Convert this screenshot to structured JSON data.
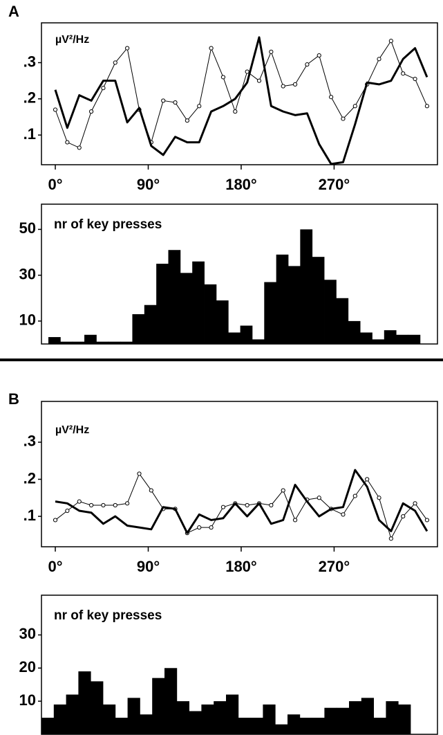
{
  "chart_data": [
    {
      "type": "line",
      "panel": "A",
      "y_label": "µV²/Hz",
      "x": [
        0,
        11.61,
        23.23,
        34.84,
        46.45,
        58.06,
        69.68,
        81.29,
        92.9,
        104.52,
        116.13,
        127.74,
        139.35,
        150.97,
        162.58,
        174.19,
        185.81,
        197.42,
        209.03,
        220.65,
        232.26,
        243.87,
        255.48,
        267.1,
        278.71,
        290.32,
        301.94,
        313.55,
        325.16,
        336.77,
        348.39,
        360
      ],
      "series": [
        {
          "color": "#000000",
          "values": [
            0.17,
            0.08,
            0.065,
            0.165,
            0.23,
            0.3,
            0.34,
            0.17,
            0.08,
            0.195,
            0.19,
            0.14,
            0.18,
            0.34,
            0.26,
            0.165,
            0.275,
            0.25,
            0.33,
            0.235,
            0.24,
            0.295,
            0.32,
            0.205,
            0.145,
            0.18,
            0.24,
            0.31,
            0.36,
            0.27,
            0.255,
            0.18
          ]
        },
        {
          "color": "#000000",
          "values": [
            0.225,
            0.12,
            0.21,
            0.195,
            0.25,
            0.25,
            0.135,
            0.175,
            0.07,
            0.045,
            0.095,
            0.08,
            0.08,
            0.165,
            0.18,
            0.2,
            0.245,
            0.37,
            0.18,
            0.165,
            0.155,
            0.16,
            0.075,
            0.02,
            0.025,
            0.13,
            0.245,
            0.24,
            0.25,
            0.31,
            0.34,
            0.26
          ]
        }
      ],
      "xlim": [
        -13.4,
        370.1
      ],
      "ylim": [
        0.018,
        0.41
      ],
      "xticks": [
        {
          "value": 0,
          "label": "0°"
        },
        {
          "value": 90,
          "label": "90°"
        },
        {
          "value": 180,
          "label": "180°"
        },
        {
          "value": 270,
          "label": "270°"
        }
      ],
      "yticks": [
        {
          "value": 0.1,
          "label": ".1"
        },
        {
          "value": 0.2,
          "label": ".2"
        },
        {
          "value": 0.3,
          "label": ".3"
        }
      ]
    },
    {
      "type": "bar",
      "y_label": "nr of key presses",
      "color": "#000000",
      "categories": [
        null,
        null,
        null,
        null,
        null,
        null,
        null,
        null,
        null,
        null,
        null,
        null,
        null,
        null,
        null,
        null,
        null,
        null,
        null,
        null,
        null,
        null,
        null,
        null,
        null,
        null,
        null,
        null,
        null,
        null,
        null
      ],
      "values": [
        3,
        1,
        1,
        4,
        1,
        1,
        1,
        13,
        17,
        35,
        41,
        31,
        36,
        26,
        19,
        5,
        8,
        2,
        27,
        39,
        34,
        50,
        38,
        28,
        20,
        10,
        5,
        2,
        6,
        4,
        4
      ],
      "ylim": [
        0,
        61
      ],
      "yticks": [
        10,
        30,
        50
      ]
    },
    {
      "type": "line",
      "panel": "B",
      "y_label": "µV²/Hz",
      "x": [
        0,
        11.61,
        23.23,
        34.84,
        46.45,
        58.06,
        69.68,
        81.29,
        92.9,
        104.52,
        116.13,
        127.74,
        139.35,
        150.97,
        162.58,
        174.19,
        185.81,
        197.42,
        209.03,
        220.65,
        232.26,
        243.87,
        255.48,
        267.1,
        278.71,
        290.32,
        301.94,
        313.55,
        325.16,
        336.77,
        348.39,
        360
      ],
      "series": [
        {
          "color": "#000000",
          "values": [
            0.09,
            0.115,
            0.14,
            0.13,
            0.13,
            0.13,
            0.135,
            0.215,
            0.17,
            0.12,
            0.12,
            0.055,
            0.07,
            0.07,
            0.125,
            0.135,
            0.13,
            0.135,
            0.13,
            0.17,
            0.09,
            0.145,
            0.15,
            0.12,
            0.105,
            0.155,
            0.2,
            0.15,
            0.04,
            0.1,
            0.135,
            0.09
          ]
        },
        {
          "color": "#000000",
          "values": [
            0.14,
            0.135,
            0.115,
            0.11,
            0.08,
            0.1,
            0.075,
            0.07,
            0.065,
            0.125,
            0.12,
            0.055,
            0.105,
            0.09,
            0.095,
            0.135,
            0.1,
            0.135,
            0.08,
            0.09,
            0.185,
            0.14,
            0.1,
            0.12,
            0.125,
            0.225,
            0.18,
            0.09,
            0.06,
            0.135,
            0.115,
            0.06
          ]
        }
      ],
      "xlim": [
        -13.4,
        370.1
      ],
      "ylim": [
        0.018,
        0.41
      ],
      "xticks": [
        {
          "value": 0,
          "label": "0°"
        },
        {
          "value": 90,
          "label": "90°"
        },
        {
          "value": 180,
          "label": "180°"
        },
        {
          "value": 270,
          "label": "270°"
        }
      ],
      "yticks": [
        {
          "value": 0.1,
          "label": ".1"
        },
        {
          "value": 0.2,
          "label": ".2"
        },
        {
          "value": 0.3,
          "label": ".3"
        }
      ]
    },
    {
      "type": "bar",
      "y_label": "nr of key presses",
      "color": "#000000",
      "categories": [
        null,
        null,
        null,
        null,
        null,
        null,
        null,
        null,
        null,
        null,
        null,
        null,
        null,
        null,
        null,
        null,
        null,
        null,
        null,
        null,
        null,
        null,
        null,
        null,
        null,
        null,
        null,
        null,
        null,
        null,
        null
      ],
      "values": [
        5,
        9,
        12,
        19,
        16,
        9,
        5,
        11,
        6,
        17,
        20,
        10,
        7,
        9,
        10,
        12,
        5,
        5,
        9,
        3,
        6,
        5,
        5,
        8,
        8,
        10,
        11,
        5,
        10,
        9,
        0
      ],
      "ylim": [
        0,
        42
      ],
      "yticks": [
        10,
        20,
        30
      ]
    }
  ]
}
